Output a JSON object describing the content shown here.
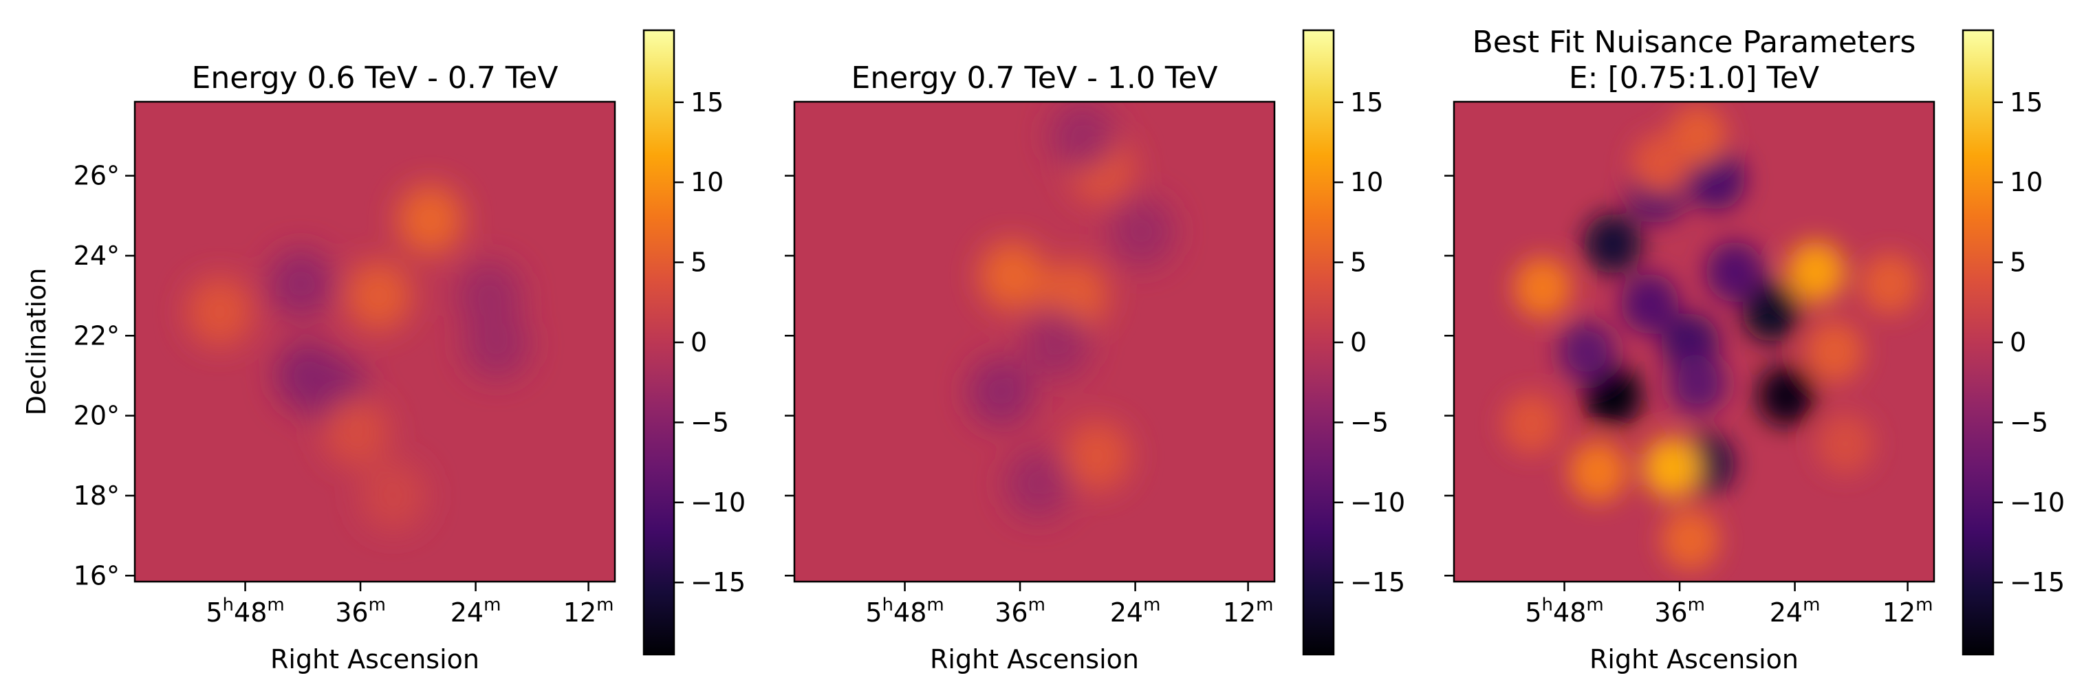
{
  "chart_data": [
    {
      "type": "heatmap",
      "title": "Energy 0.6 TeV - 0.7 TeV",
      "xlabel": "Right Ascension",
      "ylabel": "Declination",
      "x_ticks": [
        "5h48m",
        "36m",
        "24m",
        "12m"
      ],
      "y_ticks": [
        "16°",
        "18°",
        "20°",
        "22°",
        "24°",
        "26°"
      ],
      "y_ticks_values": [
        16,
        18,
        20,
        22,
        24,
        26
      ],
      "ylim": [
        15.85,
        27.85
      ],
      "colorbar": {
        "vmin": -19.5,
        "vmax": 19.5,
        "ticks": [
          15,
          10,
          5,
          0,
          -5,
          -10,
          -15
        ],
        "colormap": "inferno"
      },
      "blobs": [
        {
          "ra": 5.0,
          "dec": 24.9,
          "v": 6
        },
        {
          "ra": 3.6,
          "dec": 23.0,
          "v": 5
        },
        {
          "ra": -0.7,
          "dec": 22.6,
          "v": 4
        },
        {
          "ra": 1.7,
          "dec": 21.0,
          "v": -5
        },
        {
          "ra": 2.4,
          "dec": 20.6,
          "v": -5
        },
        {
          "ra": 1.5,
          "dec": 23.3,
          "v": -4
        },
        {
          "ra": 6.6,
          "dec": 23.0,
          "v": -3
        },
        {
          "ra": 6.8,
          "dec": 21.8,
          "v": -3
        },
        {
          "ra": 3.0,
          "dec": 19.6,
          "v": 3
        },
        {
          "ra": 4.0,
          "dec": 18.0,
          "v": 2
        }
      ]
    },
    {
      "type": "heatmap",
      "title": "Energy 0.7 TeV - 1.0 TeV",
      "xlabel": "Right Ascension",
      "ylabel": "",
      "x_ticks": [
        "5h48m",
        "36m",
        "24m",
        "12m"
      ],
      "y_ticks": [],
      "y_ticks_values": [
        16,
        18,
        20,
        22,
        24,
        26
      ],
      "ylim": [
        15.85,
        27.85
      ],
      "colorbar": {
        "vmin": -19.5,
        "vmax": 19.5,
        "ticks": [
          15,
          10,
          5,
          0,
          -5,
          -10,
          -15
        ],
        "colormap": "inferno"
      },
      "blobs": [
        {
          "ra": 2.9,
          "dec": 23.5,
          "v": 6
        },
        {
          "ra": 4.6,
          "dec": 23.0,
          "v": 5
        },
        {
          "ra": 5.3,
          "dec": 26.2,
          "v": 4
        },
        {
          "ra": 5.2,
          "dec": 19.0,
          "v": 4
        },
        {
          "ra": 2.6,
          "dec": 20.6,
          "v": -4
        },
        {
          "ra": 4.1,
          "dec": 21.8,
          "v": -3
        },
        {
          "ra": 4.8,
          "dec": 27.0,
          "v": -3
        },
        {
          "ra": 6.4,
          "dec": 24.6,
          "v": -3
        },
        {
          "ra": 3.6,
          "dec": 18.3,
          "v": -3
        }
      ]
    },
    {
      "type": "heatmap",
      "title": "Best Fit Nuisance Parameters\nE: [0.75:1.0] TeV",
      "xlabel": "Right Ascension",
      "ylabel": "",
      "x_ticks": [
        "5h48m",
        "36m",
        "24m",
        "12m"
      ],
      "y_ticks": [],
      "y_ticks_values": [
        16,
        18,
        20,
        22,
        24,
        26
      ],
      "ylim": [
        15.85,
        27.85
      ],
      "colorbar": {
        "vmin": -19.5,
        "vmax": 19.5,
        "ticks": [
          15,
          10,
          5,
          0,
          -5,
          -10,
          -15
        ],
        "colormap": "inferno"
      },
      "blobs": [
        {
          "ra": 1.3,
          "dec": 20.5,
          "v": -19
        },
        {
          "ra": 6.0,
          "dec": 20.5,
          "v": -18
        },
        {
          "ra": 5.6,
          "dec": 22.6,
          "v": -17
        },
        {
          "ra": 1.3,
          "dec": 24.3,
          "v": -16
        },
        {
          "ra": 3.8,
          "dec": 18.8,
          "v": -15
        },
        {
          "ra": 3.4,
          "dec": 21.8,
          "v": -12
        },
        {
          "ra": 2.5,
          "dec": 25.6,
          "v": -11
        },
        {
          "ra": 4.1,
          "dec": 25.9,
          "v": -11
        },
        {
          "ra": 4.6,
          "dec": 23.6,
          "v": -10
        },
        {
          "ra": 2.3,
          "dec": 22.8,
          "v": -10
        },
        {
          "ra": 3.6,
          "dec": 20.8,
          "v": -9
        },
        {
          "ra": 0.6,
          "dec": 21.6,
          "v": -9
        },
        {
          "ra": 2.9,
          "dec": 18.7,
          "v": 12
        },
        {
          "ra": 6.8,
          "dec": 23.6,
          "v": 11
        },
        {
          "ra": 0.9,
          "dec": 18.6,
          "v": 8
        },
        {
          "ra": -0.6,
          "dec": 23.2,
          "v": 8
        },
        {
          "ra": 3.4,
          "dec": 16.9,
          "v": 6
        },
        {
          "ra": 3.6,
          "dec": 27.0,
          "v": 5
        },
        {
          "ra": 7.3,
          "dec": 21.6,
          "v": 5
        },
        {
          "ra": -0.9,
          "dec": 19.8,
          "v": 4
        },
        {
          "ra": 8.8,
          "dec": 23.3,
          "v": 5
        },
        {
          "ra": 2.6,
          "dec": 26.3,
          "v": 4
        },
        {
          "ra": 7.6,
          "dec": 19.3,
          "v": 3
        }
      ]
    }
  ]
}
